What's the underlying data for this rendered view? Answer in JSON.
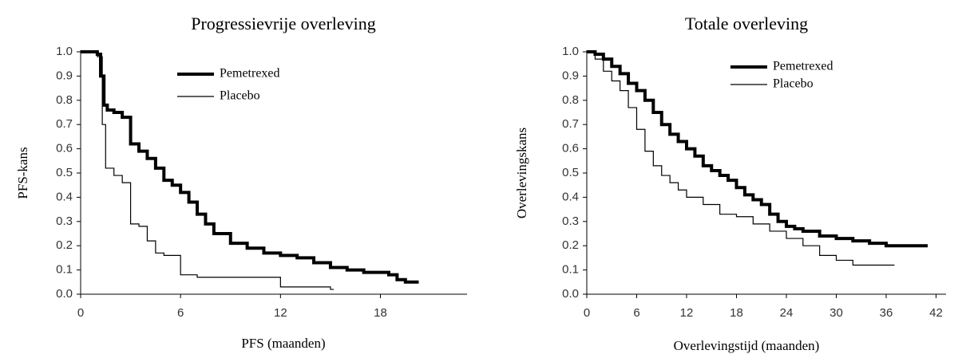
{
  "chart_data": [
    {
      "type": "line",
      "step": true,
      "title": "Progressievrije overleving",
      "xlabel": "PFS (maanden)",
      "ylabel": "PFS-kans",
      "xlim": [
        0,
        23.2
      ],
      "xticks": [
        0,
        6,
        12,
        18
      ],
      "ylim": [
        0,
        1
      ],
      "yticks": [
        {
          "value": 0,
          "label": "0.0"
        },
        0.1,
        0.2,
        0.3,
        0.4,
        0.5,
        0.6,
        0.7,
        0.8,
        0.9,
        {
          "value": 1,
          "label": "1.0"
        }
      ],
      "series": [
        {
          "name": "Pemetrexed",
          "color": "#000000",
          "x": [
            0,
            1,
            1.2,
            1.4,
            1.6,
            2,
            2.5,
            3,
            3.5,
            4,
            4.5,
            5,
            5.5,
            6,
            6.5,
            7,
            7.5,
            8,
            9,
            10,
            11,
            12,
            13,
            14,
            15,
            16,
            17,
            18,
            18.5,
            19,
            19.5,
            20,
            20.3
          ],
          "values": [
            1.0,
            0.99,
            0.9,
            0.78,
            0.76,
            0.75,
            0.73,
            0.62,
            0.59,
            0.56,
            0.52,
            0.47,
            0.45,
            0.42,
            0.38,
            0.33,
            0.29,
            0.25,
            0.21,
            0.19,
            0.17,
            0.16,
            0.15,
            0.13,
            0.11,
            0.1,
            0.09,
            0.09,
            0.08,
            0.06,
            0.05,
            0.05,
            0.05
          ]
        },
        {
          "name": "Placebo",
          "color": "#000000",
          "x": [
            0,
            1,
            1.3,
            1.5,
            2,
            2.5,
            3,
            3.5,
            4,
            4.5,
            5,
            6,
            7,
            8,
            10,
            12,
            13,
            15,
            15.2
          ],
          "values": [
            1.0,
            0.98,
            0.7,
            0.52,
            0.49,
            0.46,
            0.29,
            0.28,
            0.22,
            0.17,
            0.16,
            0.08,
            0.07,
            0.07,
            0.07,
            0.03,
            0.03,
            0.02,
            0.02
          ]
        }
      ]
    },
    {
      "type": "line",
      "step": true,
      "title": "Totale overleving",
      "xlabel": "Overlevingstijd (maanden)",
      "ylabel": "Overlevingskans",
      "xlim": [
        0,
        43.2
      ],
      "xticks": [
        0,
        6,
        12,
        18,
        24,
        30,
        36,
        42
      ],
      "ylim": [
        0,
        1
      ],
      "yticks": [
        {
          "value": 0,
          "label": "0.0"
        },
        0.1,
        0.2,
        0.3,
        0.4,
        0.5,
        0.6,
        0.7,
        0.8,
        0.9,
        {
          "value": 1,
          "label": "1.0"
        }
      ],
      "series": [
        {
          "name": "Pemetrexed",
          "color": "#000000",
          "x": [
            0,
            1,
            2,
            3,
            4,
            5,
            6,
            7,
            8,
            9,
            10,
            11,
            12,
            13,
            14,
            15,
            16,
            17,
            18,
            19,
            20,
            21,
            22,
            23,
            24,
            25,
            26,
            28,
            30,
            32,
            34,
            36,
            38,
            40,
            41
          ],
          "values": [
            1.0,
            0.99,
            0.97,
            0.94,
            0.91,
            0.87,
            0.84,
            0.8,
            0.75,
            0.7,
            0.66,
            0.63,
            0.6,
            0.57,
            0.53,
            0.51,
            0.49,
            0.47,
            0.44,
            0.41,
            0.39,
            0.37,
            0.33,
            0.3,
            0.28,
            0.27,
            0.26,
            0.24,
            0.23,
            0.22,
            0.21,
            0.2,
            0.2,
            0.2,
            0.2
          ]
        },
        {
          "name": "Placebo",
          "color": "#000000",
          "x": [
            0,
            1,
            2,
            3,
            4,
            5,
            6,
            7,
            8,
            9,
            10,
            11,
            12,
            14,
            16,
            18,
            20,
            22,
            24,
            26,
            28,
            30,
            32,
            34,
            36,
            37
          ],
          "values": [
            1.0,
            0.97,
            0.92,
            0.88,
            0.84,
            0.77,
            0.68,
            0.59,
            0.53,
            0.49,
            0.46,
            0.43,
            0.4,
            0.37,
            0.33,
            0.32,
            0.29,
            0.26,
            0.23,
            0.2,
            0.16,
            0.14,
            0.12,
            0.12,
            0.12,
            0.12
          ]
        }
      ]
    }
  ]
}
